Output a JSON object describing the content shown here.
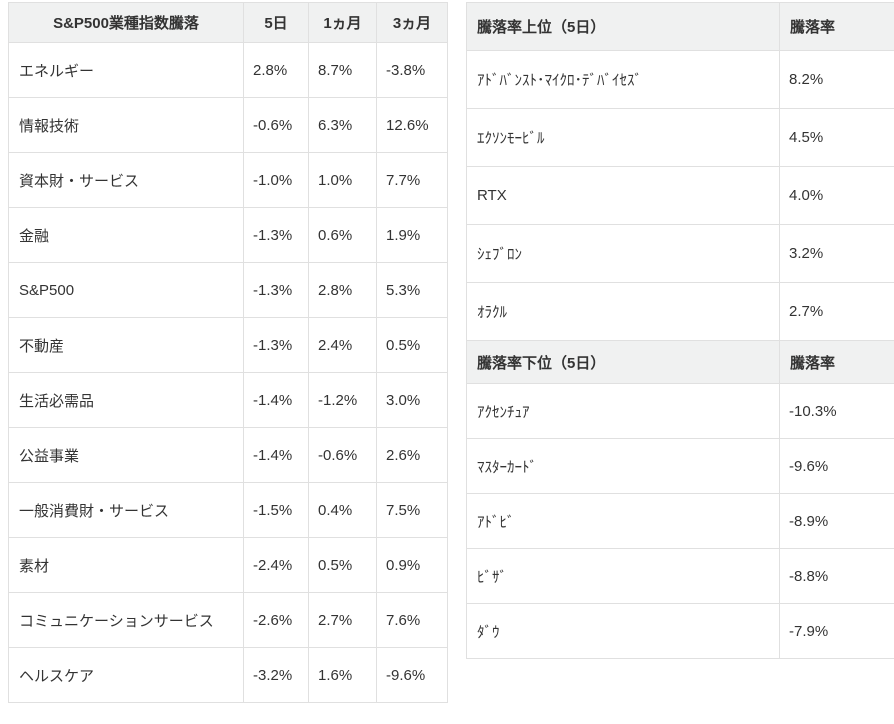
{
  "colors": {
    "header_bg": "#f0f1f1",
    "border": "#e0e0e0",
    "text": "#333333",
    "background": "#ffffff"
  },
  "sector_table": {
    "headers": [
      "S&P500業種指数騰落",
      "5日",
      "1ヵ月",
      "3ヵ月"
    ],
    "rows": [
      [
        "エネルギー",
        "2.8%",
        "8.7%",
        "-3.8%"
      ],
      [
        "情報技術",
        "-0.6%",
        "6.3%",
        "12.6%"
      ],
      [
        "資本財・サービス",
        "-1.0%",
        "1.0%",
        "7.7%"
      ],
      [
        "金融",
        "-1.3%",
        "0.6%",
        "1.9%"
      ],
      [
        "S&P500",
        "-1.3%",
        "2.8%",
        "5.3%"
      ],
      [
        "不動産",
        "-1.3%",
        "2.4%",
        "0.5%"
      ],
      [
        "生活必需品",
        "-1.4%",
        "-1.2%",
        "3.0%"
      ],
      [
        "公益事業",
        "-1.4%",
        "-0.6%",
        "2.6%"
      ],
      [
        "一般消費財・サービス",
        "-1.5%",
        "0.4%",
        "7.5%"
      ],
      [
        "素材",
        "-2.4%",
        "0.5%",
        "0.9%"
      ],
      [
        "コミュニケーションサービス",
        "-2.6%",
        "2.7%",
        "7.6%"
      ],
      [
        "ヘルスケア",
        "-3.2%",
        "1.6%",
        "-9.6%"
      ]
    ]
  },
  "gainers_table": {
    "title": "騰落率上位（5日）",
    "value_header": "騰落率",
    "rows": [
      [
        "ｱﾄﾞﾊﾞﾝｽﾄ･ﾏｲｸﾛ･ﾃﾞﾊﾞｲｾｽﾞ",
        "8.2%"
      ],
      [
        "ｴｸｿﾝﾓｰﾋﾞﾙ",
        "4.5%"
      ],
      [
        "RTX",
        "4.0%"
      ],
      [
        "ｼｪﾌﾞﾛﾝ",
        "3.2%"
      ],
      [
        "ｵﾗｸﾙ",
        "2.7%"
      ]
    ]
  },
  "losers_table": {
    "title": "騰落率下位（5日）",
    "value_header": "騰落率",
    "rows": [
      [
        "ｱｸｾﾝﾁｭｱ",
        "-10.3%"
      ],
      [
        "ﾏｽﾀｰｶｰﾄﾞ",
        "-9.6%"
      ],
      [
        "ｱﾄﾞﾋﾞ",
        "-8.9%"
      ],
      [
        "ﾋﾞｻﾞ",
        "-8.8%"
      ],
      [
        "ﾀﾞｳ",
        "-7.9%"
      ]
    ]
  }
}
